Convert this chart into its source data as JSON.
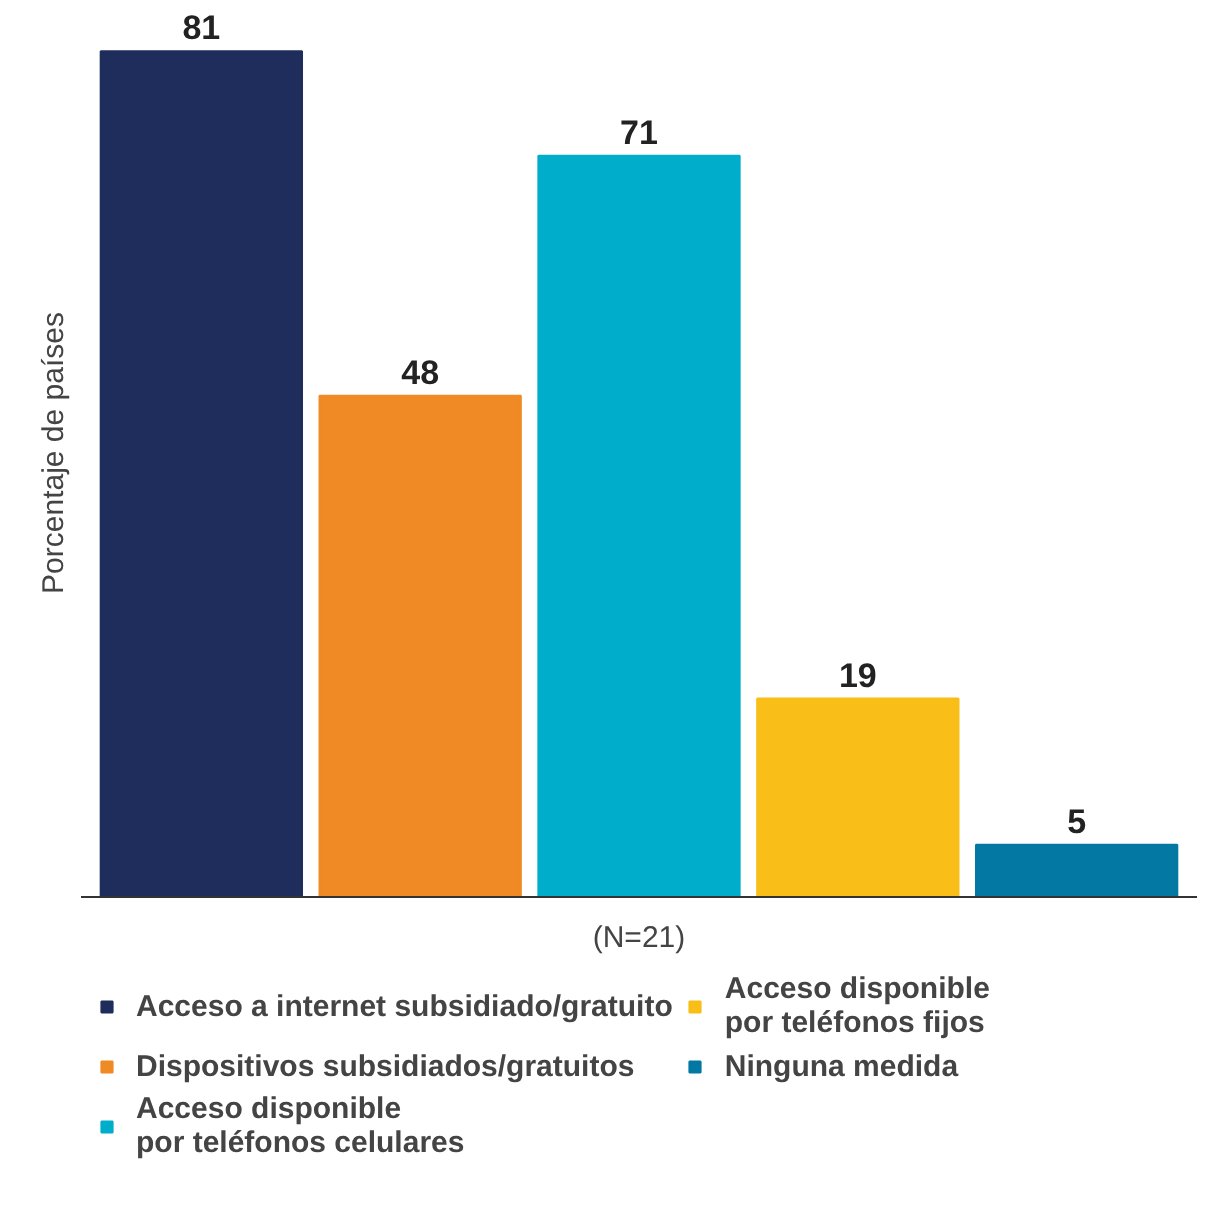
{
  "chart_data": {
    "type": "bar",
    "xlabel": "(N=21)",
    "ylabel": "Porcentaje de países",
    "data_labels": true,
    "legend": "bottom",
    "stacked": true,
    "categories": [
      null,
      null,
      null,
      null,
      null
    ],
    "series": [
      {
        "name": "Acceso a internet subsidiado/gratuito",
        "color": "#1f2d5c",
        "values": [
          81,
          null,
          null,
          null,
          null
        ]
      },
      {
        "name": "Dispositivos subsidiados/gratuitos",
        "color": "#ef8a24",
        "values": [
          null,
          48,
          null,
          null,
          null
        ]
      },
      {
        "name": "Acceso disponible\npor teléfonos celulares",
        "color": "#00aecb",
        "values": [
          null,
          null,
          71,
          null,
          null
        ]
      },
      {
        "name": "Acceso disponible\npor teléfonos fijos",
        "color": "#f9be17",
        "values": [
          null,
          null,
          null,
          19,
          null
        ]
      },
      {
        "name": "Ninguna medida",
        "color": "#0278a2",
        "values": [
          null,
          null,
          null,
          null,
          5
        ]
      }
    ]
  }
}
